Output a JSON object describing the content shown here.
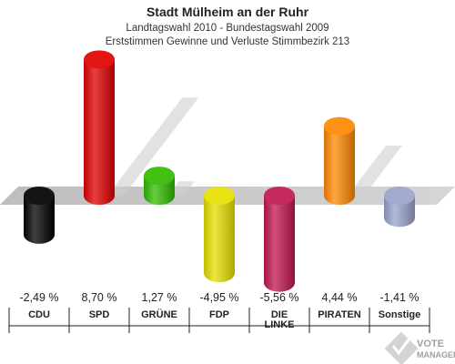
{
  "chart_data": {
    "type": "bar",
    "title": "Stadt Mülheim an der Ruhr",
    "subtitle": "Landtagswahl 2010 - Bundestagswahl 2009",
    "subtitle2": "Erststimmen Gewinne und Verluste Stimmbezirk 213",
    "categories": [
      "CDU",
      "SPD",
      "GRÜNE",
      "FDP",
      "DIE LINKE",
      "PIRATEN",
      "Sonstige"
    ],
    "category_lines": [
      [
        "CDU"
      ],
      [
        "SPD"
      ],
      [
        "GRÜNE"
      ],
      [
        "FDP"
      ],
      [
        "DIE",
        "LINKE"
      ],
      [
        "PIRATEN"
      ],
      [
        "Sonstige"
      ]
    ],
    "values": [
      -2.49,
      8.7,
      1.27,
      -4.95,
      -5.56,
      4.44,
      -1.41
    ],
    "value_labels": [
      "-2,49 %",
      "8,70 %",
      "1,27 %",
      "-4,95 %",
      "-5,56 %",
      "4,44 %",
      "-1,41 %"
    ],
    "colors": [
      "#000000",
      "#e00000",
      "#33bb00",
      "#e6e000",
      "#c0164f",
      "#ff8800",
      "#9aa3cc"
    ],
    "ylim": [
      -6,
      9
    ],
    "grid": false,
    "legend": "none"
  },
  "watermark": {
    "line1": "VOTE",
    "line2": "MANAGER"
  }
}
